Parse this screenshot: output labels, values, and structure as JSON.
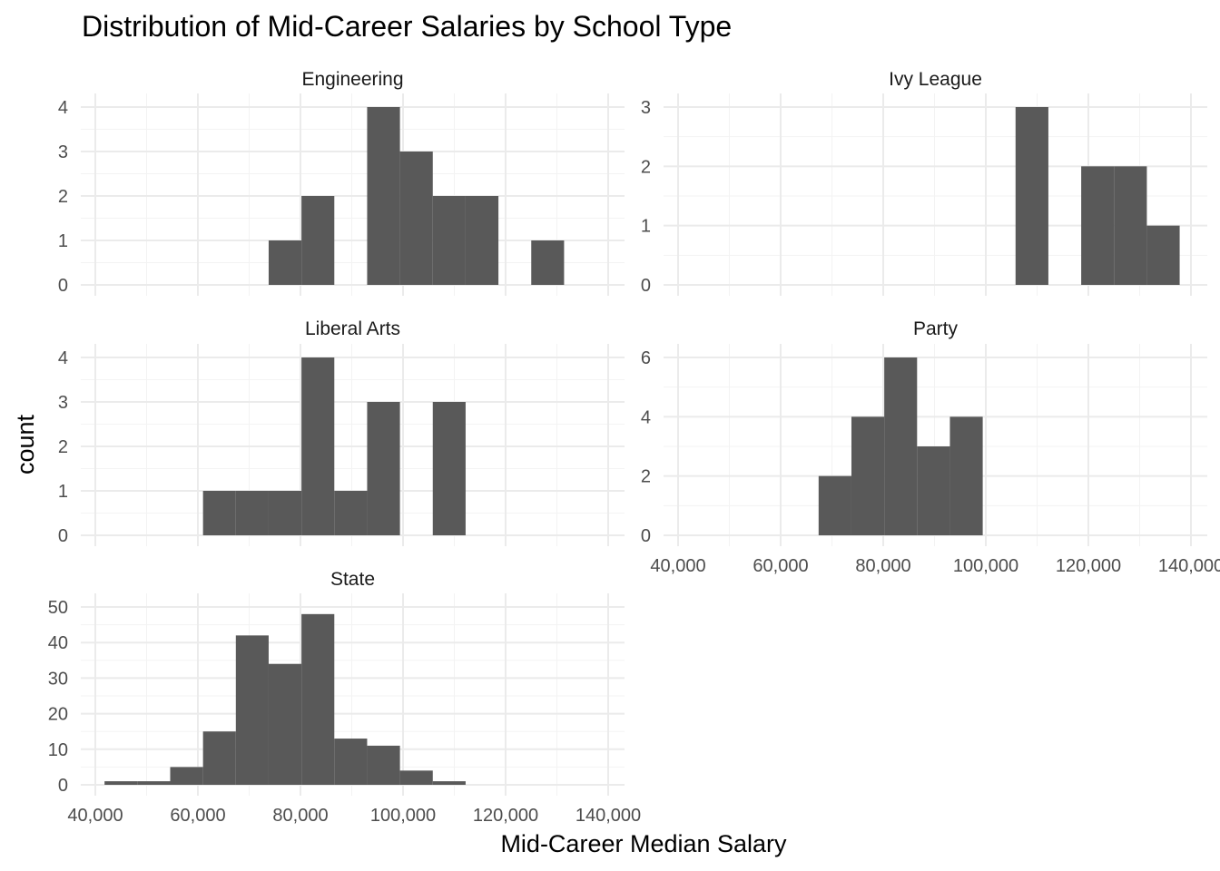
{
  "chart_data": {
    "type": "bar",
    "title": "Distribution of Mid-Career Salaries by School Type",
    "xlabel": "Mid-Career Median Salary",
    "ylabel": "count",
    "xlim": [
      40000,
      140000
    ],
    "x_ticks": [
      40000,
      60000,
      80000,
      100000,
      120000,
      140000
    ],
    "x_tick_labels": [
      "40,000",
      "60,000",
      "80,000",
      "100,000",
      "120,000",
      "140,000"
    ],
    "bin_width": 6400,
    "bin_start": 41800,
    "grid": true,
    "bar_color": "#595959",
    "panels": [
      {
        "name": "Engineering",
        "ylim": [
          0,
          4
        ],
        "y_ticks": [
          0,
          1,
          2,
          3,
          4
        ],
        "bins": [
          {
            "x": 77000,
            "count": 1
          },
          {
            "x": 83400,
            "count": 2
          },
          {
            "x": 96200,
            "count": 4
          },
          {
            "x": 102600,
            "count": 3
          },
          {
            "x": 109000,
            "count": 2
          },
          {
            "x": 115400,
            "count": 2
          },
          {
            "x": 128200,
            "count": 1
          }
        ]
      },
      {
        "name": "Ivy League",
        "ylim": [
          0,
          3
        ],
        "y_ticks": [
          0,
          1,
          2,
          3
        ],
        "bins": [
          {
            "x": 109000,
            "count": 3
          },
          {
            "x": 121800,
            "count": 2
          },
          {
            "x": 128200,
            "count": 2
          },
          {
            "x": 134600,
            "count": 1
          }
        ]
      },
      {
        "name": "Liberal Arts",
        "ylim": [
          0,
          4
        ],
        "y_ticks": [
          0,
          1,
          2,
          3,
          4
        ],
        "bins": [
          {
            "x": 64200,
            "count": 1
          },
          {
            "x": 70600,
            "count": 1
          },
          {
            "x": 77000,
            "count": 1
          },
          {
            "x": 83400,
            "count": 4
          },
          {
            "x": 89800,
            "count": 1
          },
          {
            "x": 96200,
            "count": 3
          },
          {
            "x": 109000,
            "count": 3
          }
        ]
      },
      {
        "name": "Party",
        "ylim": [
          0,
          6
        ],
        "y_ticks": [
          0,
          2,
          4,
          6
        ],
        "bins": [
          {
            "x": 70600,
            "count": 2
          },
          {
            "x": 77000,
            "count": 4
          },
          {
            "x": 83400,
            "count": 6
          },
          {
            "x": 89800,
            "count": 3
          },
          {
            "x": 96200,
            "count": 4
          }
        ]
      },
      {
        "name": "State",
        "ylim": [
          0,
          50
        ],
        "y_ticks": [
          0,
          10,
          20,
          30,
          40,
          50
        ],
        "bins": [
          {
            "x": 45000,
            "count": 1
          },
          {
            "x": 51400,
            "count": 1
          },
          {
            "x": 57800,
            "count": 5
          },
          {
            "x": 64200,
            "count": 15
          },
          {
            "x": 70600,
            "count": 42
          },
          {
            "x": 77000,
            "count": 34
          },
          {
            "x": 83400,
            "count": 48
          },
          {
            "x": 89800,
            "count": 13
          },
          {
            "x": 96200,
            "count": 11
          },
          {
            "x": 102600,
            "count": 4
          },
          {
            "x": 109000,
            "count": 1
          }
        ]
      }
    ]
  }
}
